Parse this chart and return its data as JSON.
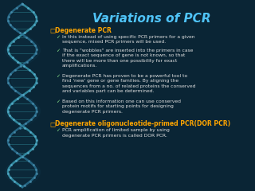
{
  "title": "Variations of PCR",
  "title_color": "#4fc3f7",
  "title_fontsize": 11,
  "bg_color": "#0a2535",
  "heading1": "Degenerate PCR",
  "heading1_color": "#ffa500",
  "heading1_fontsize": 5.5,
  "bullet1": [
    "In this instead of using specific PCR primers for a given\nsequence, mixed PCR primers will be used.",
    "That is \"wobbles\" are inserted into the primers in case\nif the exact sequence of gene is not known, so that\nthere will be more than one possibility for exact\namplifications.",
    "Degenerate PCR has proven to be a powerful tool to\nfind 'new' gene or gene families. By aligning the\nsequences from a no. of related proteins the conserved\nand variables part can be determined.",
    "Based on this information one can use conserved\nprotein motifs for starting points for designing\ndegenerate PCR primers."
  ],
  "bullet1_color": "#e0e0e0",
  "bullet1_fontsize": 4.3,
  "heading2": "Degenerate oligonucleotide-primed PCR(DOR PCR)",
  "heading2_color": "#ffa500",
  "heading2_fontsize": 5.5,
  "bullet2": [
    "PCR amplification of limited sample by using\ndegenerate PCR primers is called DOR PCR."
  ],
  "bullet2_color": "#e0e0e0",
  "bullet2_fontsize": 4.3,
  "check_color": "#90ee90",
  "sq_color": "#ffa500"
}
